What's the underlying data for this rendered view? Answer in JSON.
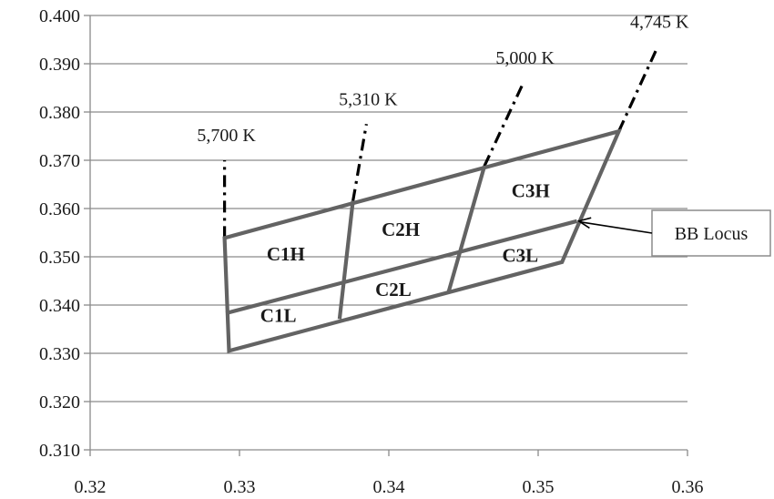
{
  "chart_data": {
    "type": "scatter",
    "title": "",
    "xlabel": "",
    "ylabel": "",
    "xlim": [
      0.32,
      0.36
    ],
    "ylim": [
      0.31,
      0.4
    ],
    "x_ticks": [
      "0.32",
      "0.33",
      "0.34",
      "0.35",
      "0.36"
    ],
    "y_ticks": [
      "0.400",
      "0.390",
      "0.380",
      "0.370",
      "0.360",
      "0.350",
      "0.340",
      "0.330",
      "0.320",
      "0.310"
    ],
    "grid": "horizontal",
    "quadrangle_outline": [
      [
        0.329,
        0.3539
      ],
      [
        0.3293,
        0.3305
      ],
      [
        0.3516,
        0.3489
      ],
      [
        0.3554,
        0.376
      ]
    ],
    "bb_locus_line": [
      [
        0.3291,
        0.3383
      ],
      [
        0.3526,
        0.3574
      ]
    ],
    "isotherm_dividers": [
      [
        [
          0.3376,
          0.3616
        ],
        [
          0.3367,
          0.3371
        ]
      ],
      [
        [
          0.3464,
          0.3688
        ],
        [
          0.344,
          0.3427
        ]
      ]
    ],
    "cct_lines": [
      {
        "label": "5,700 K",
        "from": [
          0.329,
          0.3539
        ],
        "to": [
          0.329,
          0.37
        ]
      },
      {
        "label": "5,310 K",
        "from": [
          0.3376,
          0.3616
        ],
        "to": [
          0.3385,
          0.3775
        ]
      },
      {
        "label": "5,000 K",
        "from": [
          0.3464,
          0.3688
        ],
        "to": [
          0.349,
          0.386
        ]
      },
      {
        "label": "4,745 K",
        "from": [
          0.3554,
          0.376
        ],
        "to": [
          0.358,
          0.3935
        ]
      }
    ],
    "regions": [
      {
        "label": "C1H",
        "x": 0.3331,
        "y": 0.3506
      },
      {
        "label": "C1L",
        "x": 0.3326,
        "y": 0.3378
      },
      {
        "label": "C2H",
        "x": 0.3408,
        "y": 0.3557
      },
      {
        "label": "C2L",
        "x": 0.3403,
        "y": 0.3432
      },
      {
        "label": "C3H",
        "x": 0.3495,
        "y": 0.3637
      },
      {
        "label": "C3L",
        "x": 0.3488,
        "y": 0.3503
      }
    ],
    "annotation": {
      "label": "BB Locus",
      "points_to": [
        0.3526,
        0.3574
      ]
    }
  }
}
